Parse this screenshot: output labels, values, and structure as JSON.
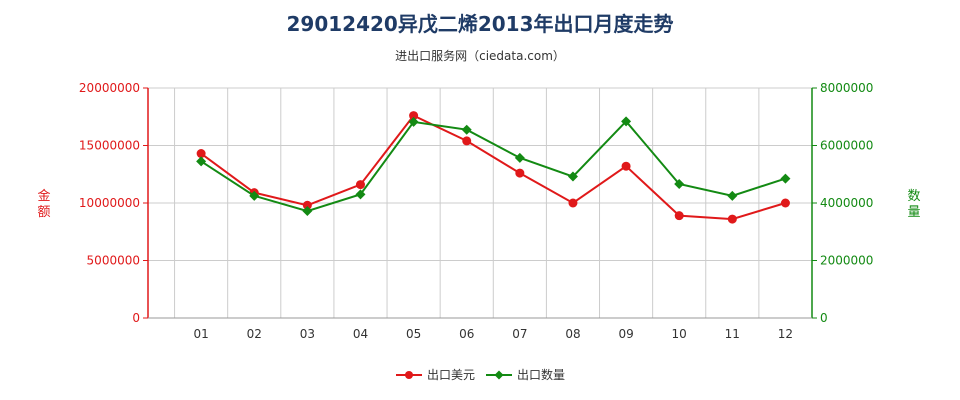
{
  "colors": {
    "left_axis": "#e0191a",
    "right_axis": "#138a13",
    "title": "#1f3b66",
    "grid": "#cccccc"
  },
  "chart_data": {
    "type": "line",
    "title": "29012420异戊二烯2013年出口月度走势",
    "subtitle": "进出口服务网（ciedata.com）",
    "categories": [
      "01",
      "02",
      "03",
      "04",
      "05",
      "06",
      "07",
      "08",
      "09",
      "10",
      "11",
      "12"
    ],
    "y_left": {
      "label": "金额",
      "ylim": [
        0,
        20000000
      ],
      "ticks": [
        "0",
        "5000000",
        "10000000",
        "15000000",
        "20000000"
      ]
    },
    "y_right": {
      "label": "数量",
      "ylim": [
        0,
        8000000
      ],
      "ticks": [
        "0",
        "2000000",
        "4000000",
        "6000000",
        "8000000"
      ]
    },
    "series": [
      {
        "name": "出口美元",
        "axis": "left",
        "color": "#e0191a",
        "marker": "circle",
        "values": [
          14300000,
          10900000,
          9800000,
          11600000,
          17600000,
          15400000,
          12600000,
          10000000,
          13200000,
          8900000,
          8600000,
          10000000
        ]
      },
      {
        "name": "出口数量",
        "axis": "right",
        "color": "#138a13",
        "marker": "diamond",
        "values": [
          5450000,
          4250000,
          3720000,
          4300000,
          6820000,
          6550000,
          5570000,
          4920000,
          6840000,
          4660000,
          4250000,
          4850000
        ]
      }
    ],
    "grid": true,
    "legend": "bottom-center"
  }
}
